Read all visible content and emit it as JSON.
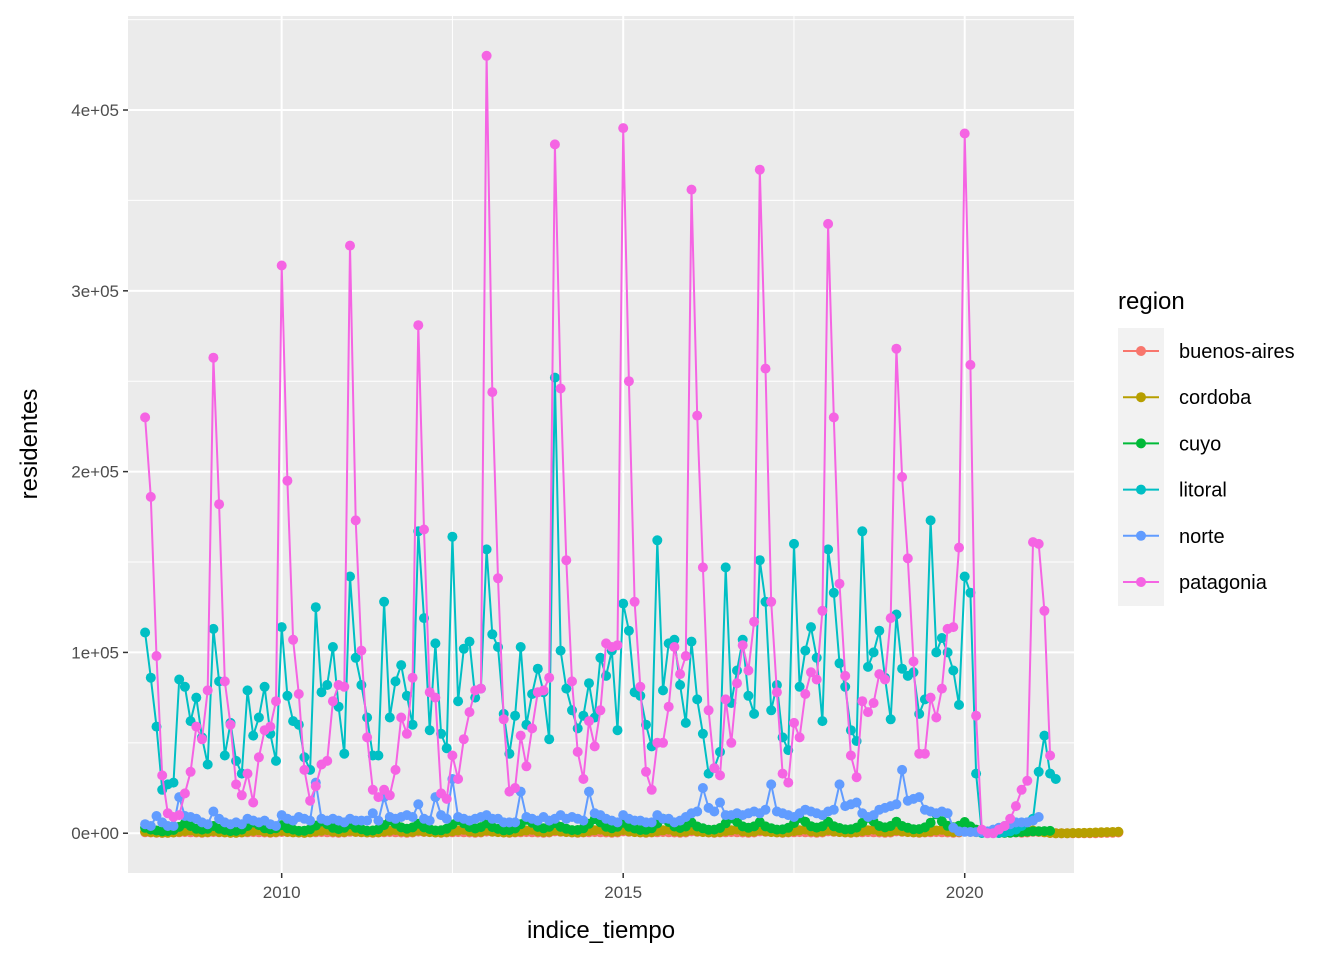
{
  "chart_data": {
    "type": "line",
    "xlabel": "indice_tiempo",
    "ylabel": "residentes",
    "xlim": [
      2007.75,
      2021.6
    ],
    "ylim": [
      -22000,
      452000
    ],
    "x_ticks": [
      2010,
      2015,
      2020
    ],
    "x_tick_labels": [
      "2010",
      "2015",
      "2020"
    ],
    "y_ticks": [
      0,
      100000,
      200000,
      300000,
      400000
    ],
    "y_tick_labels": [
      "0e+00",
      "1e+05",
      "2e+05",
      "3e+05",
      "4e+05"
    ],
    "grid": true,
    "markers": true,
    "legend": {
      "title": "region",
      "placement": "right",
      "entries": [
        "buenos-aires",
        "cordoba",
        "cuyo",
        "litoral",
        "norte",
        "patagonia"
      ]
    },
    "series": [
      {
        "name": "buenos-aires",
        "color": "#F8766D",
        "x_start": 2008.0,
        "x_step": 0.0833333,
        "values": [
          500,
          400,
          300,
          200,
          300,
          400,
          500,
          600,
          500,
          400,
          300,
          400,
          600,
          500,
          400,
          300,
          300,
          400,
          500,
          600,
          500,
          400,
          300,
          400,
          700,
          600,
          500,
          400,
          300,
          400,
          500,
          600,
          500,
          400,
          300,
          400,
          800,
          700,
          500,
          400,
          300,
          400,
          500,
          600,
          500,
          400,
          300,
          400,
          900,
          700,
          600,
          400,
          300,
          400,
          500,
          600,
          500,
          400,
          300,
          400,
          900,
          800,
          600,
          400,
          300,
          400,
          500,
          600,
          500,
          400,
          300,
          400,
          1000,
          800,
          600,
          400,
          300,
          400,
          500,
          600,
          500,
          400,
          300,
          400,
          1000,
          800,
          600,
          400,
          300,
          400,
          500,
          600,
          500,
          400,
          300,
          400,
          1000,
          800,
          600,
          400,
          300,
          400,
          500,
          600,
          500,
          400,
          300,
          400,
          1000,
          800,
          600,
          400,
          300,
          400,
          500,
          600,
          500,
          400,
          300,
          400,
          1000,
          800,
          600,
          400,
          300,
          400,
          500,
          600,
          500,
          400,
          300,
          400,
          1000,
          800,
          600,
          400,
          300,
          400,
          500,
          600,
          500,
          400,
          300,
          400,
          1000,
          800,
          600,
          400,
          300,
          400,
          500,
          600,
          500,
          400,
          300,
          400,
          800,
          700,
          500,
          100,
          0,
          0,
          0,
          0,
          0,
          0,
          0,
          0,
          100,
          200,
          300,
          400
        ]
      },
      {
        "name": "cordoba",
        "color": "#B79F00",
        "x_start": 2008.0,
        "x_step": 0.0833333,
        "values": [
          900,
          600,
          400,
          300,
          300,
          400,
          800,
          1200,
          1500,
          800,
          500,
          600,
          1200,
          700,
          500,
          300,
          300,
          500,
          900,
          1300,
          1600,
          900,
          500,
          700,
          1300,
          800,
          500,
          400,
          300,
          500,
          1000,
          1400,
          1700,
          900,
          600,
          700,
          1400,
          800,
          600,
          400,
          400,
          500,
          1000,
          1400,
          1800,
          1000,
          600,
          800,
          1500,
          900,
          600,
          400,
          400,
          600,
          1100,
          1500,
          1900,
          1000,
          600,
          800,
          1500,
          900,
          600,
          400,
          400,
          600,
          1100,
          1500,
          1900,
          1000,
          600,
          800,
          1600,
          1000,
          700,
          500,
          400,
          600,
          1200,
          1600,
          2000,
          1100,
          700,
          900,
          1700,
          1000,
          700,
          500,
          400,
          600,
          1200,
          1600,
          2000,
          1100,
          700,
          900,
          1700,
          1000,
          700,
          500,
          400,
          600,
          1200,
          1600,
          2000,
          1100,
          700,
          900,
          1700,
          1000,
          700,
          500,
          400,
          600,
          1200,
          1600,
          2000,
          1100,
          700,
          900,
          1700,
          1000,
          700,
          500,
          400,
          600,
          1200,
          1600,
          2000,
          1100,
          700,
          900,
          1600,
          1000,
          700,
          500,
          400,
          600,
          1100,
          1500,
          1900,
          1000,
          600,
          800,
          1500,
          900,
          600,
          400,
          400,
          600,
          1100,
          1500,
          1900,
          1000,
          600,
          800,
          1500,
          900,
          500,
          100,
          0,
          0,
          0,
          100,
          100,
          200,
          300,
          400,
          500,
          600,
          700,
          800
        ]
      },
      {
        "name": "cuyo",
        "color": "#00BA38",
        "x_start": 2008.0,
        "x_step": 0.0833333,
        "values": [
          3000,
          2000,
          1500,
          1000,
          1200,
          1800,
          3500,
          5500,
          4000,
          2500,
          2000,
          2500,
          4000,
          2500,
          1800,
          1200,
          1300,
          2000,
          4000,
          6000,
          4500,
          2800,
          2200,
          2800,
          4500,
          2800,
          2000,
          1300,
          1400,
          2200,
          4200,
          6500,
          5000,
          3000,
          2300,
          3000,
          5000,
          3000,
          2200,
          1400,
          1500,
          2300,
          4500,
          7000,
          5200,
          3200,
          2500,
          3200,
          5200,
          3200,
          2300,
          1500,
          1600,
          2500,
          4800,
          7200,
          5500,
          3400,
          2600,
          3400,
          5500,
          3400,
          2400,
          1600,
          1700,
          2600,
          5000,
          7500,
          5800,
          3500,
          2700,
          3500,
          5600,
          3500,
          2500,
          1700,
          1800,
          2700,
          5200,
          7800,
          6000,
          3600,
          2800,
          3600,
          5800,
          3600,
          2600,
          1800,
          1900,
          2800,
          5400,
          8000,
          6200,
          3700,
          2900,
          3700,
          6000,
          3700,
          2700,
          1900,
          2000,
          2900,
          5500,
          8200,
          6300,
          3800,
          3000,
          3800,
          6200,
          3800,
          2800,
          2000,
          2100,
          3000,
          5600,
          8400,
          6400,
          3900,
          3100,
          3900,
          6300,
          3900,
          2900,
          2100,
          2200,
          3100,
          5700,
          8600,
          6500,
          4000,
          3200,
          4000,
          6400,
          4000,
          3000,
          2200,
          2300,
          3200,
          5800,
          10500,
          6600,
          4100,
          3300,
          4100,
          6200,
          3800,
          2000,
          200,
          100,
          100,
          100,
          200,
          300,
          500,
          700,
          900,
          1000,
          1100,
          1200,
          1300
        ]
      },
      {
        "name": "litoral",
        "color": "#00BFC4",
        "x_start": 2008.0,
        "x_step": 0.0833333,
        "values": [
          111000,
          86000,
          59000,
          24000,
          27000,
          28000,
          85000,
          81000,
          62000,
          75000,
          53000,
          38000,
          113000,
          84000,
          43000,
          61000,
          40000,
          33000,
          79000,
          54000,
          64000,
          81000,
          55000,
          40000,
          114000,
          76000,
          62000,
          60000,
          42000,
          35000,
          125000,
          78000,
          82000,
          103000,
          70000,
          44000,
          142000,
          97000,
          82000,
          64000,
          43000,
          43000,
          128000,
          64000,
          84000,
          93000,
          76000,
          60000,
          167000,
          119000,
          57000,
          105000,
          55000,
          47000,
          164000,
          73000,
          102000,
          106000,
          75000,
          80000,
          157000,
          110000,
          103000,
          66000,
          44000,
          65000,
          103000,
          60000,
          77000,
          91000,
          78000,
          52000,
          252000,
          101000,
          80000,
          68000,
          58000,
          65000,
          83000,
          64000,
          97000,
          87000,
          101000,
          57000,
          127000,
          112000,
          78000,
          76000,
          60000,
          48000,
          162000,
          79000,
          105000,
          107000,
          82000,
          61000,
          106000,
          74000,
          55000,
          33000,
          36000,
          45000,
          147000,
          72000,
          90000,
          107000,
          76000,
          66000,
          151000,
          128000,
          68000,
          82000,
          53000,
          46000,
          160000,
          81000,
          101000,
          114000,
          97000,
          62000,
          157000,
          133000,
          94000,
          81000,
          57000,
          51000,
          167000,
          92000,
          100000,
          112000,
          86000,
          63000,
          121000,
          91000,
          87000,
          89000,
          66000,
          74000,
          173000,
          100000,
          108000,
          100000,
          90000,
          71000,
          142000,
          133000,
          33000,
          200,
          100,
          100,
          200,
          500,
          1000,
          2000,
          4000,
          6000,
          8000,
          34000,
          54000,
          33000,
          30000
        ]
      },
      {
        "name": "norte",
        "color": "#619CFF",
        "x_start": 2008.0,
        "x_step": 0.0833333,
        "values": [
          5000,
          4000,
          9500,
          6000,
          4000,
          4000,
          20000,
          9500,
          9000,
          8000,
          6000,
          5000,
          12000,
          8000,
          6000,
          5000,
          6000,
          5000,
          8000,
          7000,
          6000,
          7000,
          5000,
          4000,
          10000,
          8000,
          7000,
          9000,
          8000,
          7000,
          28000,
          8000,
          7000,
          8000,
          7000,
          6000,
          8000,
          7000,
          7000,
          7000,
          11000,
          7000,
          20000,
          9000,
          8000,
          9000,
          10000,
          9000,
          16000,
          8000,
          7000,
          20000,
          10000,
          8000,
          30000,
          9000,
          8000,
          7000,
          8000,
          9000,
          10000,
          8000,
          8000,
          6000,
          6000,
          6000,
          23000,
          9000,
          8000,
          7000,
          9000,
          7000,
          8000,
          10000,
          8000,
          9000,
          8000,
          7000,
          23000,
          11000,
          10000,
          8000,
          7000,
          6000,
          10000,
          8000,
          7000,
          7000,
          6000,
          6000,
          10000,
          8000,
          8000,
          6000,
          7000,
          9000,
          11000,
          12000,
          25000,
          14000,
          12000,
          17000,
          10000,
          10000,
          11000,
          10000,
          11000,
          12000,
          11000,
          13000,
          27000,
          12000,
          11000,
          10000,
          9000,
          11000,
          13000,
          12000,
          11000,
          10000,
          12000,
          13000,
          27000,
          15000,
          16000,
          17000,
          11000,
          9000,
          10000,
          13000,
          14000,
          15000,
          16000,
          35000,
          18000,
          19000,
          20000,
          13000,
          12000,
          11000,
          12000,
          11000,
          3000,
          1000,
          800,
          700,
          600,
          800,
          1000,
          2000,
          3000,
          4000,
          5000,
          6000,
          6000,
          6000,
          7000,
          9000
        ]
      },
      {
        "name": "patagonia",
        "color": "#F564E3",
        "x_start": 2008.0,
        "x_step": 0.0833333,
        "values": [
          230000,
          186000,
          98000,
          32000,
          11000,
          9000,
          10000,
          22000,
          34000,
          59000,
          52000,
          79000,
          263000,
          182000,
          84000,
          60000,
          27000,
          21000,
          33000,
          17000,
          42000,
          57000,
          59000,
          73000,
          314000,
          195000,
          107000,
          77000,
          35000,
          18000,
          26000,
          38000,
          40000,
          73000,
          82000,
          81000,
          325000,
          173000,
          101000,
          53000,
          24000,
          20000,
          24000,
          21000,
          35000,
          64000,
          55000,
          86000,
          281000,
          168000,
          78000,
          75000,
          22000,
          19000,
          43000,
          30000,
          52000,
          67000,
          79000,
          80000,
          430000,
          244000,
          141000,
          63000,
          23000,
          25000,
          54000,
          37000,
          58000,
          78000,
          79000,
          86000,
          381000,
          246000,
          151000,
          84000,
          45000,
          30000,
          62000,
          48000,
          68000,
          105000,
          103000,
          104000,
          390000,
          250000,
          128000,
          81000,
          34000,
          24000,
          50000,
          50000,
          70000,
          103000,
          88000,
          98000,
          356000,
          231000,
          147000,
          68000,
          36000,
          32000,
          74000,
          50000,
          83000,
          104000,
          90000,
          117000,
          367000,
          257000,
          128000,
          78000,
          33000,
          28000,
          61000,
          53000,
          77000,
          89000,
          85000,
          123000,
          337000,
          230000,
          138000,
          87000,
          43000,
          31000,
          73000,
          67000,
          72000,
          88000,
          85000,
          119000,
          268000,
          197000,
          152000,
          95000,
          44000,
          44000,
          75000,
          64000,
          80000,
          113000,
          114000,
          158000,
          387000,
          259000,
          65000,
          2000,
          0,
          0,
          2000,
          4000,
          8000,
          15000,
          24000,
          29000,
          161000,
          160000,
          123000,
          43000
        ]
      }
    ]
  }
}
